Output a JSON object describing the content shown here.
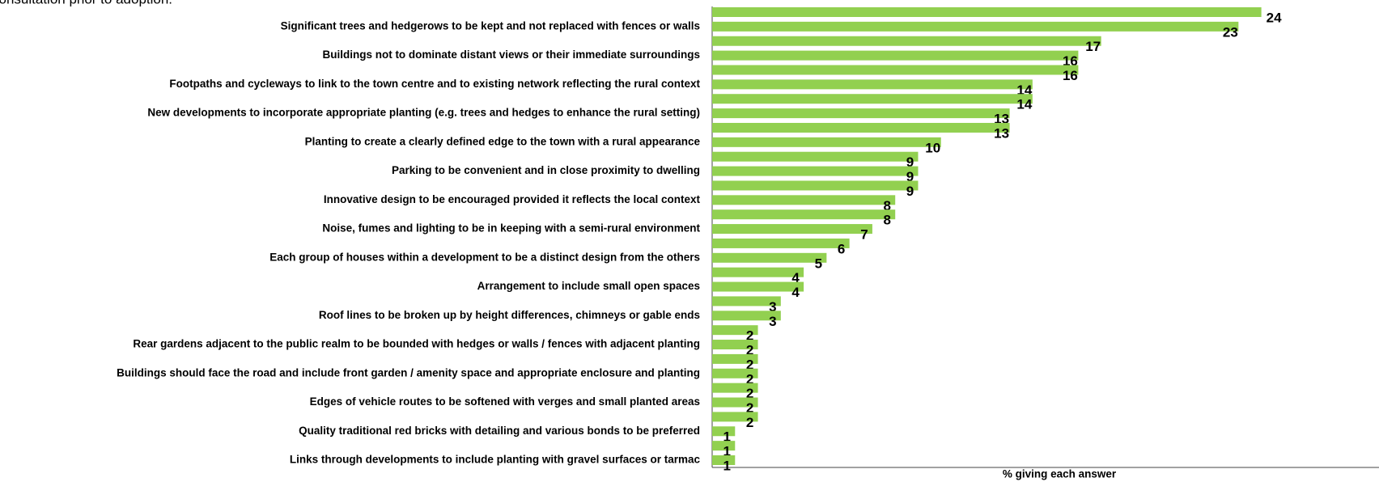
{
  "chart_data": {
    "type": "barh",
    "title": "consultation prior to adoption.",
    "xlabel": "% giving each answer",
    "categories": [
      null,
      "Significant trees and hedgerows to be kept and not replaced with fences or walls",
      null,
      "Buildings not to dominate distant views or their immediate surroundings",
      null,
      "Footpaths and cycleways to link to the town centre and to existing network reflecting the rural context",
      null,
      "New developments to incorporate appropriate planting (e.g. trees and hedges to enhance the rural setting)",
      null,
      "Planting to create a clearly defined edge to the town with a rural appearance",
      null,
      "Parking to be convenient and in close proximity to dwelling",
      null,
      "Innovative design to be encouraged provided it reflects the local context",
      null,
      "Noise, fumes and lighting to be in keeping with a semi-rural environment",
      null,
      "Each group of houses within a development to be a distinct design from the others",
      null,
      "Arrangement to include small open spaces",
      null,
      "Roof lines to be broken up by height differences, chimneys or gable ends",
      null,
      "Rear gardens adjacent to the public realm to be bounded with hedges or walls / fences with adjacent planting",
      null,
      "Buildings should face the road and include front garden / amenity space and appropriate enclosure and planting",
      null,
      "Edges of vehicle routes to be softened with verges and small planted areas",
      null,
      "Quality traditional red bricks with detailing and various bonds to be preferred",
      null,
      "Links through developments to include planting with gravel surfaces or tarmac"
    ],
    "values": [
      24,
      23,
      17,
      16,
      16,
      14,
      14,
      13,
      13,
      10,
      9,
      9,
      9,
      8,
      8,
      7,
      6,
      5,
      4,
      4,
      3,
      3,
      2,
      2,
      2,
      2,
      2,
      2,
      2,
      1,
      1,
      1
    ],
    "color": "#92d050",
    "xlim": [
      0,
      29
    ]
  }
}
